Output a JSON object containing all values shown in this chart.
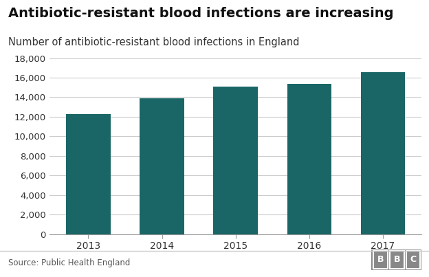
{
  "title": "Antibiotic-resistant blood infections are increasing",
  "subtitle": "Number of antibiotic-resistant blood infections in England",
  "years": [
    "2013",
    "2014",
    "2015",
    "2016",
    "2017"
  ],
  "values": [
    12300,
    13900,
    15100,
    15350,
    16600
  ],
  "bar_color": "#1a6666",
  "background_color": "#ffffff",
  "ylim": [
    0,
    18000
  ],
  "yticks": [
    0,
    2000,
    4000,
    6000,
    8000,
    10000,
    12000,
    14000,
    16000,
    18000
  ],
  "ytick_labels": [
    "0",
    "2,000",
    "4,000",
    "6,000",
    "8,000",
    "10,000",
    "12,000",
    "14,000",
    "16,000",
    "18,000"
  ],
  "source_text": "Source: Public Health England",
  "bbc_text": "BBC",
  "title_fontsize": 14,
  "subtitle_fontsize": 10.5,
  "tick_fontsize": 9.5,
  "source_fontsize": 8.5,
  "grid_color": "#cccccc",
  "bottom_line_color": "#999999"
}
